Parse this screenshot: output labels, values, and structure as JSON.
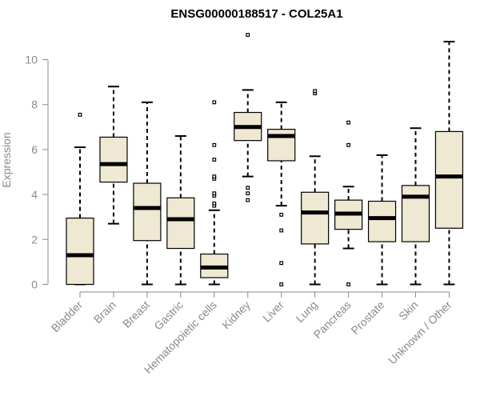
{
  "chart_data": {
    "type": "boxplot",
    "title": "ENSG00000188517 - COL25A1",
    "xlabel": "",
    "ylabel": "Expression",
    "ylim": [
      0,
      11.2
    ],
    "yticks": [
      0,
      2,
      4,
      6,
      8,
      10
    ],
    "grid": false,
    "legend": "none",
    "box_fill": "#efe8d2",
    "categories": [
      "Bladder",
      "Brain",
      "Breast",
      "Gastric",
      "Hematopoietic cells",
      "Kidney",
      "Liver",
      "Lung",
      "Pancreas",
      "Prostate",
      "Skin",
      "Unknown / Other"
    ],
    "boxes": [
      {
        "min": 0.0,
        "q1": 0.0,
        "median": 1.3,
        "q3": 2.95,
        "max": 6.1,
        "outliers": [
          7.55
        ]
      },
      {
        "min": 2.7,
        "q1": 4.55,
        "median": 5.35,
        "q3": 6.55,
        "max": 8.8,
        "outliers": []
      },
      {
        "min": 0.0,
        "q1": 1.95,
        "median": 3.4,
        "q3": 4.5,
        "max": 8.1,
        "outliers": []
      },
      {
        "min": 0.0,
        "q1": 1.6,
        "median": 2.9,
        "q3": 3.85,
        "max": 6.6,
        "outliers": []
      },
      {
        "min": 0.0,
        "q1": 0.3,
        "median": 0.75,
        "q3": 1.35,
        "max": 3.3,
        "outliers": [
          3.5,
          3.6,
          3.95,
          4.05,
          4.7,
          4.8,
          5.55,
          6.2,
          8.1
        ]
      },
      {
        "min": 4.8,
        "q1": 6.4,
        "median": 7.0,
        "q3": 7.65,
        "max": 8.65,
        "outliers": [
          3.75,
          4.05,
          4.3,
          11.1
        ]
      },
      {
        "min": 3.5,
        "q1": 5.5,
        "median": 6.6,
        "q3": 6.9,
        "max": 8.1,
        "outliers": [
          0.0,
          0.95,
          2.4,
          3.1
        ]
      },
      {
        "min": 0.0,
        "q1": 1.8,
        "median": 3.2,
        "q3": 4.1,
        "max": 5.7,
        "outliers": [
          8.5,
          8.6
        ]
      },
      {
        "min": 1.6,
        "q1": 2.45,
        "median": 3.15,
        "q3": 3.75,
        "max": 4.35,
        "outliers": [
          0.0,
          6.2,
          7.2
        ]
      },
      {
        "min": 0.0,
        "q1": 1.9,
        "median": 2.95,
        "q3": 3.7,
        "max": 5.75,
        "outliers": []
      },
      {
        "min": 0.0,
        "q1": 1.9,
        "median": 3.9,
        "q3": 4.4,
        "max": 6.95,
        "outliers": []
      },
      {
        "min": 0.0,
        "q1": 2.5,
        "median": 4.8,
        "q3": 6.8,
        "max": 10.8,
        "outliers": []
      }
    ]
  }
}
